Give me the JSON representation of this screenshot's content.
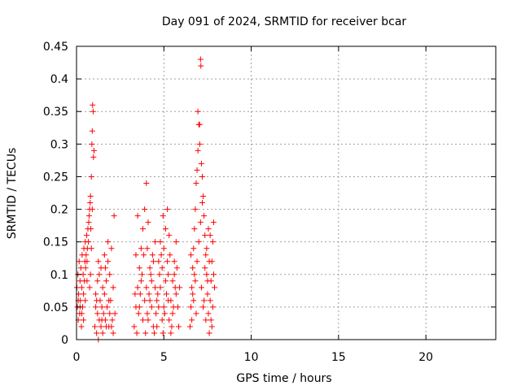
{
  "chart_data": {
    "type": "scatter",
    "title": "Day 091 of 2024, SRMTID for receiver bcar",
    "xlabel": "GPS time / hours",
    "ylabel": "SRMTID / TECUs",
    "xlim": [
      0,
      24
    ],
    "ylim": [
      0,
      0.45
    ],
    "xticks": [
      0,
      5,
      10,
      15,
      20
    ],
    "xtick_labels": [
      "0",
      "5",
      "10",
      "15",
      "20"
    ],
    "yticks": [
      0,
      0.05,
      0.1,
      0.15,
      0.2,
      0.25,
      0.3,
      0.35,
      0.4,
      0.45
    ],
    "ytick_labels": [
      "0",
      "0.05",
      "0.1",
      "0.15",
      "0.2",
      "0.25",
      "0.3",
      "0.35",
      "0.4",
      "0.45"
    ],
    "grid": true,
    "marker": "+",
    "color": "#ff0000",
    "series": [
      {
        "points": [
          [
            0.02,
            0.08
          ],
          [
            0.05,
            0.05
          ],
          [
            0.08,
            0.1
          ],
          [
            0.1,
            0.03
          ],
          [
            0.12,
            0.07
          ],
          [
            0.15,
            0.12
          ],
          [
            0.18,
            0.04
          ],
          [
            0.2,
            0.09
          ],
          [
            0.22,
            0.06
          ],
          [
            0.25,
            0.11
          ],
          [
            0.28,
            0.02
          ],
          [
            0.3,
            0.08
          ],
          [
            0.32,
            0.13
          ],
          [
            0.35,
            0.05
          ],
          [
            0.38,
            0.1
          ],
          [
            0.4,
            0.07
          ],
          [
            0.42,
            0.14
          ],
          [
            0.45,
            0.09
          ],
          [
            0.48,
            0.12
          ],
          [
            0.5,
            0.15
          ],
          [
            0.52,
            0.11
          ],
          [
            0.55,
            0.13
          ],
          [
            0.58,
            0.16
          ],
          [
            0.6,
            0.12
          ],
          [
            0.62,
            0.14
          ],
          [
            0.65,
            0.17
          ],
          [
            0.68,
            0.15
          ],
          [
            0.7,
            0.18
          ],
          [
            0.72,
            0.19
          ],
          [
            0.75,
            0.2
          ],
          [
            0.78,
            0.21
          ],
          [
            0.8,
            0.22
          ],
          [
            0.82,
            0.17
          ],
          [
            0.85,
            0.25
          ],
          [
            0.88,
            0.3
          ],
          [
            0.9,
            0.32
          ],
          [
            0.92,
            0.36
          ],
          [
            0.95,
            0.35
          ],
          [
            0.97,
            0.28
          ],
          [
            1.0,
            0.29
          ],
          [
            0.9,
            0.2
          ],
          [
            0.85,
            0.14
          ],
          [
            0.8,
            0.1
          ],
          [
            0.75,
            0.08
          ],
          [
            0.1,
            0.06
          ],
          [
            0.3,
            0.04
          ],
          [
            0.5,
            0.06
          ],
          [
            0.6,
            0.09
          ],
          [
            0.4,
            0.03
          ],
          [
            0.2,
            0.05
          ],
          [
            1.05,
            0.02
          ],
          [
            1.1,
            0.05
          ],
          [
            1.15,
            0.01
          ],
          [
            1.2,
            0.04
          ],
          [
            1.25,
            0.0
          ],
          [
            1.3,
            0.03
          ],
          [
            1.35,
            0.06
          ],
          [
            1.4,
            0.02
          ],
          [
            1.45,
            0.05
          ],
          [
            1.5,
            0.01
          ],
          [
            1.55,
            0.04
          ],
          [
            1.6,
            0.07
          ],
          [
            1.65,
            0.03
          ],
          [
            1.7,
            0.09
          ],
          [
            1.75,
            0.05
          ],
          [
            1.8,
            0.12
          ],
          [
            1.85,
            0.02
          ],
          [
            1.9,
            0.1
          ],
          [
            1.95,
            0.06
          ],
          [
            2.0,
            0.14
          ],
          [
            2.05,
            0.03
          ],
          [
            2.1,
            0.08
          ],
          [
            2.15,
            0.19
          ],
          [
            2.2,
            0.04
          ],
          [
            1.2,
            0.09
          ],
          [
            1.4,
            0.11
          ],
          [
            1.6,
            0.13
          ],
          [
            1.8,
            0.15
          ],
          [
            1.1,
            0.07
          ],
          [
            1.3,
            0.1
          ],
          [
            1.5,
            0.08
          ],
          [
            1.7,
            0.02
          ],
          [
            1.9,
            0.04
          ],
          [
            2.1,
            0.01
          ],
          [
            1.25,
            0.12
          ],
          [
            1.45,
            0.03
          ],
          [
            1.65,
            0.11
          ],
          [
            1.85,
            0.06
          ],
          [
            2.0,
            0.02
          ],
          [
            1.15,
            0.06
          ],
          [
            3.3,
            0.02
          ],
          [
            3.4,
            0.05
          ],
          [
            3.5,
            0.08
          ],
          [
            3.6,
            0.11
          ],
          [
            3.7,
            0.14
          ],
          [
            3.8,
            0.17
          ],
          [
            3.9,
            0.2
          ],
          [
            4.0,
            0.24
          ],
          [
            4.1,
            0.03
          ],
          [
            4.2,
            0.06
          ],
          [
            4.3,
            0.09
          ],
          [
            4.4,
            0.12
          ],
          [
            4.5,
            0.15
          ],
          [
            4.6,
            0.02
          ],
          [
            4.7,
            0.05
          ],
          [
            4.8,
            0.08
          ],
          [
            4.9,
            0.11
          ],
          [
            5.0,
            0.14
          ],
          [
            5.1,
            0.17
          ],
          [
            5.2,
            0.2
          ],
          [
            5.3,
            0.03
          ],
          [
            5.4,
            0.06
          ],
          [
            5.5,
            0.09
          ],
          [
            5.6,
            0.12
          ],
          [
            5.7,
            0.15
          ],
          [
            5.8,
            0.05
          ],
          [
            5.9,
            0.08
          ],
          [
            3.35,
            0.07
          ],
          [
            3.45,
            0.01
          ],
          [
            3.55,
            0.04
          ],
          [
            3.65,
            0.07
          ],
          [
            3.75,
            0.1
          ],
          [
            3.85,
            0.13
          ],
          [
            3.95,
            0.01
          ],
          [
            4.05,
            0.04
          ],
          [
            4.15,
            0.07
          ],
          [
            4.25,
            0.1
          ],
          [
            4.35,
            0.13
          ],
          [
            4.45,
            0.01
          ],
          [
            4.55,
            0.04
          ],
          [
            4.65,
            0.07
          ],
          [
            4.75,
            0.1
          ],
          [
            4.85,
            0.13
          ],
          [
            4.95,
            0.01
          ],
          [
            5.05,
            0.04
          ],
          [
            5.15,
            0.07
          ],
          [
            5.25,
            0.1
          ],
          [
            5.35,
            0.13
          ],
          [
            5.45,
            0.02
          ],
          [
            5.55,
            0.05
          ],
          [
            5.65,
            0.08
          ],
          [
            5.75,
            0.11
          ],
          [
            5.85,
            0.02
          ],
          [
            3.5,
            0.19
          ],
          [
            3.7,
            0.09
          ],
          [
            3.9,
            0.06
          ],
          [
            4.1,
            0.18
          ],
          [
            4.3,
            0.05
          ],
          [
            4.5,
            0.08
          ],
          [
            4.7,
            0.12
          ],
          [
            4.9,
            0.03
          ],
          [
            5.1,
            0.09
          ],
          [
            5.3,
            0.16
          ],
          [
            5.5,
            0.04
          ],
          [
            5.7,
            0.07
          ],
          [
            3.8,
            0.03
          ],
          [
            4.0,
            0.08
          ],
          [
            4.2,
            0.11
          ],
          [
            4.4,
            0.02
          ],
          [
            4.6,
            0.06
          ],
          [
            4.8,
            0.15
          ],
          [
            5.0,
            0.05
          ],
          [
            5.2,
            0.12
          ],
          [
            5.4,
            0.01
          ],
          [
            5.6,
            0.1
          ],
          [
            3.6,
            0.05
          ],
          [
            3.4,
            0.13
          ],
          [
            4.95,
            0.19
          ],
          [
            5.25,
            0.06
          ],
          [
            4.05,
            0.14
          ],
          [
            6.5,
            0.02
          ],
          [
            6.55,
            0.05
          ],
          [
            6.6,
            0.08
          ],
          [
            6.65,
            0.11
          ],
          [
            6.7,
            0.14
          ],
          [
            6.75,
            0.17
          ],
          [
            6.8,
            0.2
          ],
          [
            6.85,
            0.24
          ],
          [
            6.9,
            0.26
          ],
          [
            6.95,
            0.29
          ],
          [
            7.0,
            0.33
          ],
          [
            7.05,
            0.3
          ],
          [
            7.1,
            0.43
          ],
          [
            7.12,
            0.42
          ],
          [
            7.15,
            0.27
          ],
          [
            7.2,
            0.25
          ],
          [
            7.25,
            0.22
          ],
          [
            7.3,
            0.19
          ],
          [
            7.35,
            0.16
          ],
          [
            7.4,
            0.13
          ],
          [
            7.45,
            0.1
          ],
          [
            7.5,
            0.07
          ],
          [
            7.55,
            0.04
          ],
          [
            7.6,
            0.01
          ],
          [
            7.65,
            0.06
          ],
          [
            7.7,
            0.09
          ],
          [
            7.75,
            0.12
          ],
          [
            7.8,
            0.15
          ],
          [
            7.85,
            0.18
          ],
          [
            7.9,
            0.08
          ],
          [
            6.6,
            0.03
          ],
          [
            6.7,
            0.06
          ],
          [
            6.8,
            0.09
          ],
          [
            6.9,
            0.12
          ],
          [
            7.0,
            0.15
          ],
          [
            7.1,
            0.18
          ],
          [
            7.2,
            0.21
          ],
          [
            7.3,
            0.06
          ],
          [
            7.4,
            0.03
          ],
          [
            7.5,
            0.09
          ],
          [
            7.6,
            0.12
          ],
          [
            7.7,
            0.03
          ],
          [
            7.8,
            0.05
          ],
          [
            6.95,
            0.35
          ],
          [
            7.05,
            0.33
          ],
          [
            6.85,
            0.04
          ],
          [
            7.15,
            0.08
          ],
          [
            7.45,
            0.14
          ],
          [
            7.65,
            0.16
          ],
          [
            7.75,
            0.02
          ],
          [
            6.65,
            0.07
          ],
          [
            6.75,
            0.1
          ],
          [
            7.35,
            0.11
          ],
          [
            7.55,
            0.17
          ],
          [
            7.85,
            0.1
          ],
          [
            7.25,
            0.05
          ],
          [
            6.55,
            0.13
          ]
        ]
      }
    ]
  }
}
